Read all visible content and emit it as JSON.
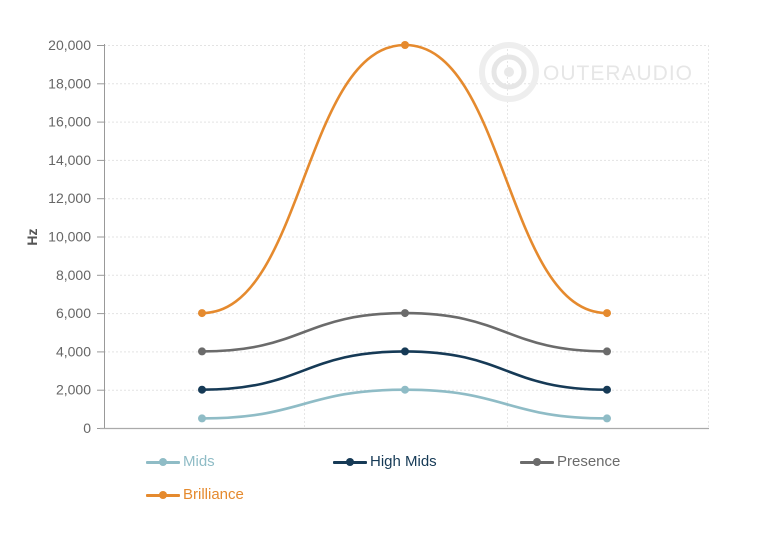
{
  "chart_data": {
    "type": "line",
    "title": "",
    "xlabel": "",
    "ylabel": "Hz",
    "ylim": [
      0,
      20000
    ],
    "yticks": [
      0,
      2000,
      4000,
      6000,
      8000,
      10000,
      12000,
      14000,
      16000,
      18000,
      20000
    ],
    "ytick_labels": [
      "0",
      "2,000",
      "4,000",
      "6,000",
      "8,000",
      "10,000",
      "12,000",
      "14,000",
      "16,000",
      "18,000",
      "20,000"
    ],
    "categories": [
      "",
      "",
      ""
    ],
    "grid": true,
    "smooth": true,
    "legend_position": "bottom",
    "series": [
      {
        "name": "Mids",
        "color": "#8fbcc6",
        "values": [
          500,
          2000,
          500
        ]
      },
      {
        "name": "High Mids",
        "color": "#163a56",
        "values": [
          2000,
          4000,
          2000
        ]
      },
      {
        "name": "Presence",
        "color": "#6b6b6b",
        "values": [
          4000,
          6000,
          4000
        ]
      },
      {
        "name": "Brilliance",
        "color": "#e58a2e",
        "values": [
          6000,
          20000,
          6000
        ]
      }
    ]
  },
  "watermark": {
    "text": "OUTERAUDIO"
  },
  "legend": {
    "items": [
      {
        "label": "Mids",
        "color": "#8fbcc6"
      },
      {
        "label": "High Mids",
        "color": "#163a56"
      },
      {
        "label": "Presence",
        "color": "#6b6b6b"
      },
      {
        "label": "Brilliance",
        "color": "#e58a2e"
      }
    ]
  }
}
